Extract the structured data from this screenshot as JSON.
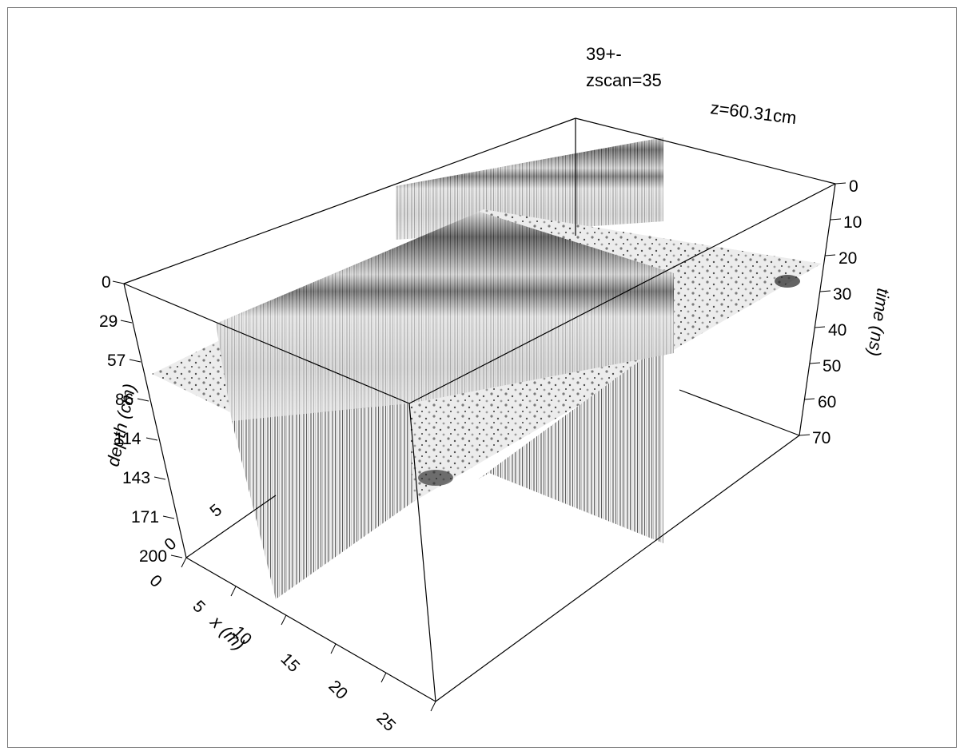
{
  "header": {
    "line1": "39+-",
    "line2": "zscan=35",
    "depth_readout": "z=60.31cm"
  },
  "axes": {
    "depth": {
      "title": "depth (cm)",
      "ticks": [
        "0",
        "29",
        "57",
        "86",
        "114",
        "143",
        "171",
        "200"
      ]
    },
    "time": {
      "title": "time (ns)",
      "ticks": [
        "0",
        "10",
        "20",
        "30",
        "40",
        "50",
        "60",
        "70"
      ]
    },
    "x": {
      "title": "x (m)",
      "ticks": [
        "0",
        "5",
        "10",
        "15",
        "20",
        "25"
      ]
    },
    "y": {
      "ticks": [
        "0",
        "5"
      ]
    }
  },
  "colors": {
    "frame": "#7a7a7a",
    "box_line": "#000000",
    "radar_dark": "#1a1a1a",
    "radar_light": "#f4f4f4"
  }
}
